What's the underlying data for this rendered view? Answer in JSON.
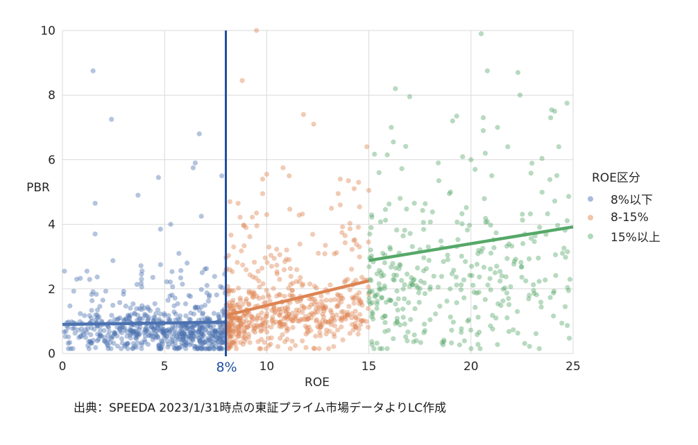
{
  "chart_data": {
    "type": "scatter",
    "title": "",
    "xlabel": "ROE",
    "ylabel": "PBR",
    "xlim": [
      0,
      25
    ],
    "ylim": [
      0,
      10
    ],
    "x_ticks": [
      0,
      5,
      10,
      15,
      20,
      25
    ],
    "y_ticks": [
      0,
      2,
      4,
      6,
      8,
      10
    ],
    "grid": true,
    "legend_position": "right",
    "legend_title": "ROE区分",
    "threshold_line": {
      "x": 8,
      "label": "8%",
      "color": "#1f4e9e"
    },
    "series": [
      {
        "name": "8%以下",
        "color": "#4c72b0",
        "x_range": [
          0,
          8
        ],
        "n_points": 620,
        "trend_line": {
          "x": [
            0,
            8
          ],
          "y": [
            0.9,
            0.97
          ]
        },
        "outliers": [
          [
            1.5,
            8.75
          ],
          [
            2.4,
            7.25
          ],
          [
            6.7,
            6.8
          ],
          [
            6.5,
            5.9
          ],
          [
            6.4,
            5.75
          ],
          [
            7.8,
            5.5
          ],
          [
            4.7,
            5.45
          ],
          [
            3.7,
            4.9
          ],
          [
            1.6,
            4.65
          ],
          [
            5.3,
            4.0
          ],
          [
            4.8,
            3.85
          ],
          [
            6.8,
            4.25
          ],
          [
            1.6,
            3.7
          ],
          [
            5.7,
            3.1
          ],
          [
            6.1,
            2.8
          ],
          [
            4.8,
            2.75
          ],
          [
            0.1,
            2.55
          ],
          [
            1.2,
            2.55
          ],
          [
            0.7,
            2.3
          ]
        ]
      },
      {
        "name": "8-15%",
        "color": "#dd8452",
        "x_range": [
          8,
          15
        ],
        "n_points": 560,
        "trend_line": {
          "x": [
            8,
            15
          ],
          "y": [
            1.18,
            2.25
          ]
        },
        "outliers": [
          [
            9.5,
            10.0
          ],
          [
            8.8,
            8.45
          ],
          [
            11.8,
            7.4
          ],
          [
            12.3,
            7.1
          ],
          [
            14.9,
            6.4
          ],
          [
            10.8,
            5.75
          ],
          [
            11.1,
            5.5
          ],
          [
            10.0,
            5.55
          ],
          [
            9.8,
            5.4
          ],
          [
            9.8,
            4.95
          ],
          [
            8.2,
            4.7
          ],
          [
            8.6,
            4.65
          ],
          [
            9.5,
            4.35
          ],
          [
            10.0,
            4.3
          ],
          [
            13.6,
            5.4
          ],
          [
            14.0,
            5.35
          ],
          [
            14.5,
            5.3
          ],
          [
            15.0,
            5.05
          ],
          [
            13.5,
            4.95
          ],
          [
            13.6,
            4.6
          ]
        ]
      },
      {
        "name": "15%以上",
        "color": "#55a868",
        "x_range": [
          15,
          25
        ],
        "n_points": 330,
        "trend_line": {
          "x": [
            15,
            25
          ],
          "y": [
            2.88,
            3.92
          ]
        },
        "outliers": [
          [
            20.5,
            9.9
          ],
          [
            16.3,
            8.2
          ],
          [
            17.0,
            7.95
          ],
          [
            20.8,
            8.75
          ],
          [
            22.3,
            8.7
          ],
          [
            22.4,
            8.0
          ],
          [
            21.8,
            6.4
          ],
          [
            19.3,
            7.35
          ],
          [
            19.1,
            7.2
          ],
          [
            20.6,
            7.3
          ],
          [
            24.7,
            7.75
          ],
          [
            24.1,
            7.5
          ],
          [
            23.9,
            7.3
          ],
          [
            20.6,
            6.9
          ],
          [
            21.3,
            7.0
          ],
          [
            16.1,
            7.0
          ],
          [
            16.2,
            6.55
          ],
          [
            15.9,
            6.15
          ],
          [
            20.7,
            6.2
          ],
          [
            24.3,
            6.4
          ],
          [
            15.5,
            5.6
          ],
          [
            18.4,
            5.9
          ],
          [
            20.0,
            6.0
          ],
          [
            20.2,
            5.7
          ],
          [
            19.0,
            5.0
          ]
        ]
      }
    ]
  },
  "legend": {
    "title": "ROE区分",
    "items": [
      {
        "label": "8%以下",
        "color": "#4c72b0"
      },
      {
        "label": "8-15%",
        "color": "#dd8452"
      },
      {
        "label": "15%以上",
        "color": "#55a868"
      }
    ]
  },
  "axes": {
    "x_title": "ROE",
    "y_title": "PBR",
    "threshold_label": "8%"
  },
  "source_note": "出典：SPEEDA 2023/1/31時点の東証プライム市場データよりLC作成"
}
